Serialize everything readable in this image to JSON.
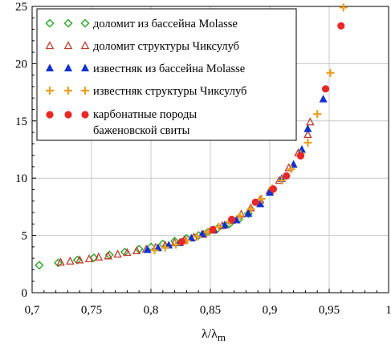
{
  "chart_data": {
    "type": "scatter",
    "title": "",
    "xlabel": "λ/λ",
    "xlabel_sub": "m",
    "ylabel": "",
    "xlim": [
      0.7,
      1.0
    ],
    "ylim": [
      0,
      25
    ],
    "xticks": [
      "0,7",
      "0,75",
      "0,8",
      "0,85",
      "0,9",
      "0,95",
      "1"
    ],
    "yticks": [
      "0",
      "5",
      "10",
      "15",
      "20",
      "25"
    ],
    "grid": true,
    "legend_position": "top-left",
    "series": [
      {
        "name": "доломит из бассейна Molasse",
        "marker": "diamond-open",
        "color": "#2eaa2e",
        "points": [
          [
            0.706,
            2.4
          ],
          [
            0.722,
            2.6
          ],
          [
            0.738,
            2.85
          ],
          [
            0.752,
            3.05
          ],
          [
            0.765,
            3.3
          ],
          [
            0.778,
            3.55
          ],
          [
            0.79,
            3.8
          ],
          [
            0.8,
            4.0
          ],
          [
            0.81,
            4.25
          ],
          [
            0.82,
            4.5
          ],
          [
            0.83,
            4.75
          ],
          [
            0.84,
            5.0
          ],
          [
            0.848,
            5.3
          ],
          [
            0.856,
            5.6
          ],
          [
            0.866,
            6.0
          ],
          [
            0.874,
            6.4
          ],
          [
            0.882,
            6.9
          ]
        ]
      },
      {
        "name": "доломит структуры Чиксулуб",
        "marker": "triangle-open",
        "color": "#c0392b",
        "points": [
          [
            0.724,
            2.65
          ],
          [
            0.732,
            2.75
          ],
          [
            0.74,
            2.85
          ],
          [
            0.748,
            2.95
          ],
          [
            0.756,
            3.1
          ],
          [
            0.764,
            3.2
          ],
          [
            0.772,
            3.35
          ],
          [
            0.78,
            3.5
          ],
          [
            0.788,
            3.65
          ],
          [
            0.796,
            3.8
          ],
          [
            0.804,
            3.95
          ],
          [
            0.812,
            4.15
          ],
          [
            0.82,
            4.35
          ],
          [
            0.828,
            4.6
          ],
          [
            0.836,
            4.85
          ],
          [
            0.844,
            5.1
          ],
          [
            0.852,
            5.45
          ],
          [
            0.86,
            5.85
          ],
          [
            0.868,
            6.3
          ],
          [
            0.876,
            6.85
          ],
          [
            0.884,
            7.4
          ],
          [
            0.892,
            8.1
          ],
          [
            0.9,
            8.9
          ],
          [
            0.908,
            9.8
          ],
          [
            0.916,
            10.9
          ],
          [
            0.924,
            12.2
          ],
          [
            0.932,
            13.8
          ],
          [
            0.934,
            14.9
          ]
        ]
      },
      {
        "name": "известняк из бассейна Molasse",
        "marker": "triangle-filled",
        "color": "#1030d0",
        "points": [
          [
            0.797,
            3.75
          ],
          [
            0.806,
            3.9
          ],
          [
            0.815,
            4.15
          ],
          [
            0.824,
            4.35
          ],
          [
            0.834,
            4.75
          ],
          [
            0.843,
            5.1
          ],
          [
            0.853,
            5.5
          ],
          [
            0.862,
            5.9
          ],
          [
            0.872,
            6.35
          ],
          [
            0.882,
            6.9
          ],
          [
            0.892,
            7.75
          ],
          [
            0.9,
            8.75
          ],
          [
            0.91,
            9.95
          ],
          [
            0.92,
            11.2
          ],
          [
            0.927,
            12.5
          ],
          [
            0.932,
            14.3
          ],
          [
            0.945,
            16.9
          ]
        ]
      },
      {
        "name": "известняк структуры Чиксулуб",
        "marker": "plus",
        "color": "#e8a020",
        "points": [
          [
            0.803,
            3.7
          ],
          [
            0.812,
            3.95
          ],
          [
            0.821,
            4.2
          ],
          [
            0.83,
            4.55
          ],
          [
            0.839,
            4.9
          ],
          [
            0.848,
            5.3
          ],
          [
            0.857,
            5.75
          ],
          [
            0.866,
            6.2
          ],
          [
            0.875,
            6.7
          ],
          [
            0.884,
            7.3
          ],
          [
            0.893,
            8.2
          ],
          [
            0.902,
            9.1
          ],
          [
            0.91,
            9.8
          ],
          [
            0.918,
            10.8
          ],
          [
            0.926,
            12.1
          ],
          [
            0.932,
            13.1
          ],
          [
            0.94,
            15.6
          ],
          [
            0.951,
            19.2
          ],
          [
            0.962,
            24.9
          ]
        ]
      },
      {
        "name_lines": [
          "карбонатные породы",
          "баженовской свиты"
        ],
        "marker": "circle-filled",
        "color": "#e82828",
        "points": [
          [
            0.826,
            4.45
          ],
          [
            0.852,
            5.5
          ],
          [
            0.868,
            6.4
          ],
          [
            0.888,
            7.9
          ],
          [
            0.903,
            9.05
          ],
          [
            0.914,
            10.2
          ],
          [
            0.926,
            11.95
          ],
          [
            0.947,
            17.8
          ],
          [
            0.96,
            23.3
          ]
        ]
      }
    ]
  }
}
